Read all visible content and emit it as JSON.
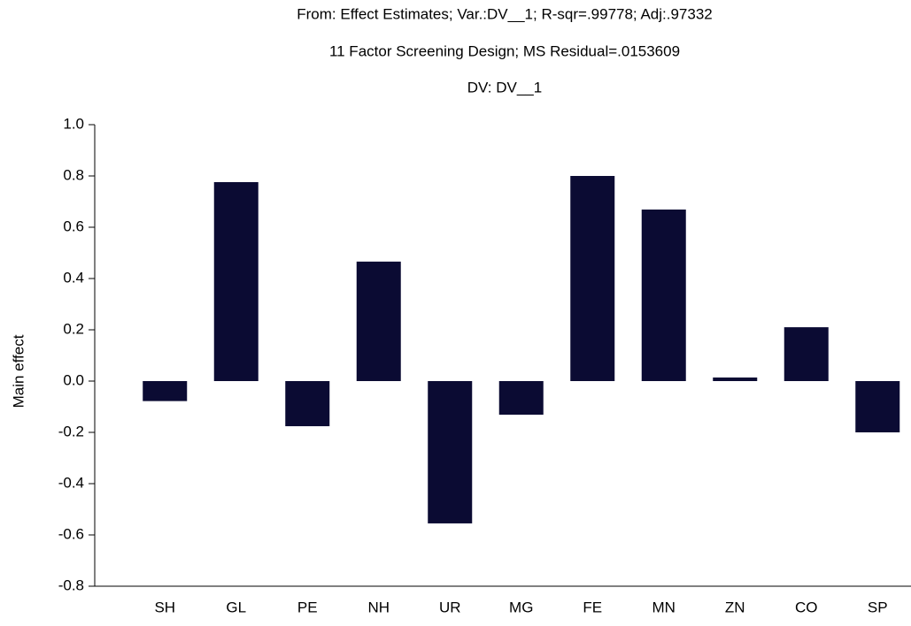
{
  "chart_data": {
    "type": "bar",
    "title": "From: Effect Estimates; Var.:DV__1; R-sqr=.99778; Adj:.97332",
    "subtitle": "11 Factor Screening Design; MS Residual=.0153609",
    "subtitle2": "DV: DV__1",
    "y_label": "Main effect",
    "categories": [
      "SH",
      "GL",
      "PE",
      "NH",
      "UR",
      "MG",
      "FE",
      "MN",
      "ZN",
      "CO",
      "SP"
    ],
    "values": [
      -0.078,
      0.776,
      -0.176,
      0.466,
      -0.555,
      -0.131,
      0.8,
      0.669,
      0.014,
      0.21,
      -0.2
    ],
    "color": "#0b0b33",
    "ylim": [
      -0.8,
      1.0
    ],
    "yticks": [
      {
        "value": 1.0,
        "label": "1.0"
      },
      0.8,
      0.6,
      0.4,
      0.2,
      {
        "value": 0.0,
        "label": "0.0"
      },
      -0.2,
      -0.4,
      -0.6,
      -0.8
    ],
    "grid": false
  }
}
